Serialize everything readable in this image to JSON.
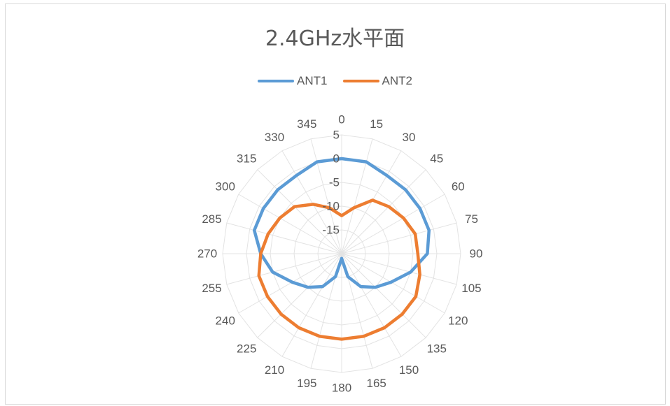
{
  "chart_data": {
    "type": "radar",
    "title": "2.4GHz水平面",
    "legend_position": "top",
    "grid": true,
    "angles": [
      "0",
      "15",
      "30",
      "45",
      "60",
      "75",
      "90",
      "105",
      "120",
      "135",
      "150",
      "165",
      "180",
      "195",
      "210",
      "225",
      "240",
      "255",
      "270",
      "285",
      "300",
      "315",
      "330",
      "345"
    ],
    "radial_ticks": [
      5,
      0,
      -5,
      -10,
      -15
    ],
    "rlim": [
      -20,
      5
    ],
    "series": [
      {
        "name": "ANT1",
        "color": "#5b9bd5",
        "values": [
          0,
          0,
          -1,
          -1,
          -1,
          -1,
          -2,
          -5,
          -8,
          -10,
          -12,
          -15,
          -19,
          -15,
          -12,
          -10,
          -8,
          -5,
          -3,
          -1,
          -1,
          -1,
          -1,
          0
        ]
      },
      {
        "name": "ANT2",
        "color": "#ed7d31",
        "values": [
          -12,
          -10,
          -7,
          -6,
          -5,
          -4,
          -4,
          -3,
          -2,
          -2,
          -2,
          -2,
          -2,
          -2,
          -2,
          -2,
          -2,
          -2,
          -3,
          -4,
          -5,
          -6,
          -8,
          -10
        ]
      }
    ]
  }
}
